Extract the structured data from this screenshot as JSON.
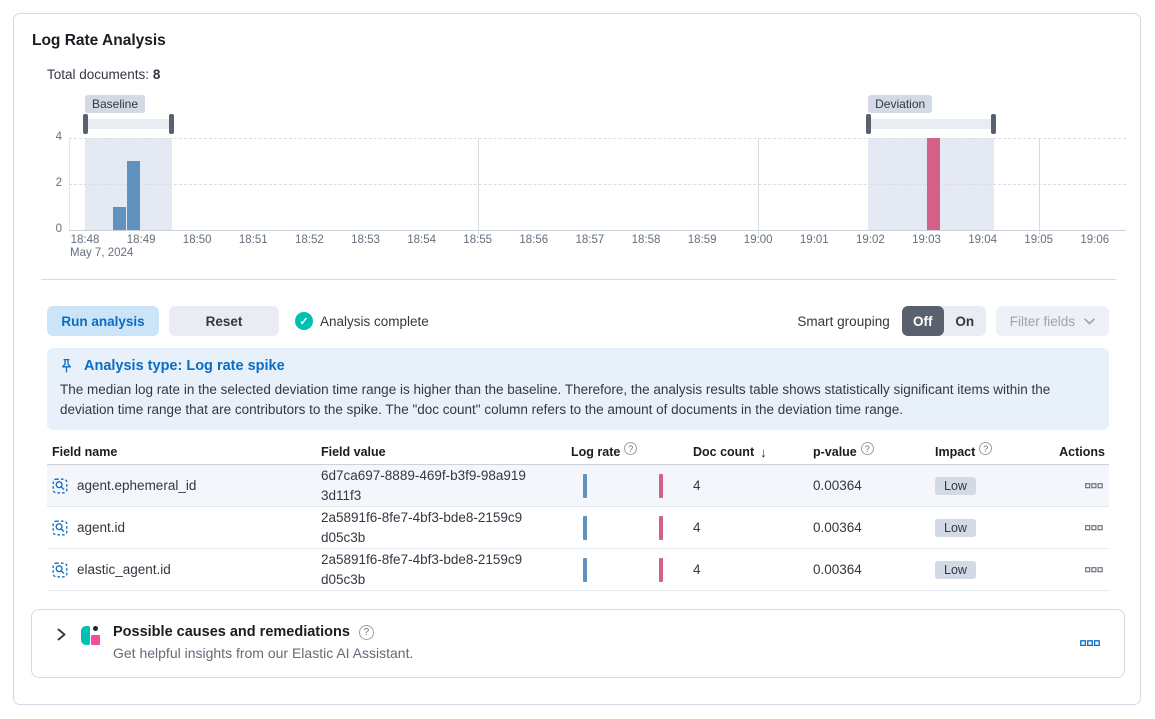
{
  "header": {
    "title": "Log Rate Analysis",
    "total_documents_label": "Total documents:",
    "total_documents_value": "8"
  },
  "icons": {
    "check": "✓",
    "question": "?",
    "sort_desc": "↓"
  },
  "colors": {
    "primary_blue": "#0a6cc2",
    "success_teal": "#00BFB3",
    "baseline_bar": "#6092C0",
    "deviation_bar": "#D36086"
  },
  "chart_data": {
    "type": "bar",
    "title": "",
    "xlabel": "",
    "ylabel": "",
    "x_axis": {
      "tick_labels": [
        "18:48",
        "18:49",
        "18:50",
        "18:51",
        "18:52",
        "18:53",
        "18:54",
        "18:55",
        "18:56",
        "18:57",
        "18:58",
        "18:59",
        "19:00",
        "19:01",
        "19:02",
        "19:03",
        "19:04",
        "19:05",
        "19:06"
      ],
      "first_tick_date": "May 7, 2024",
      "major_gridlines_at": [
        "18:55",
        "19:00",
        "19:05"
      ]
    },
    "y_axis": {
      "ticks": [
        0,
        2,
        4
      ],
      "range": [
        0,
        4
      ],
      "gridlines": "dashed"
    },
    "series": [
      {
        "name": "baseline",
        "color": "#6092C0",
        "points": [
          {
            "time": "18:48:30",
            "offset_min": 0.5,
            "doc_count": 1
          },
          {
            "time": "18:48:45",
            "offset_min": 0.75,
            "doc_count": 3
          }
        ]
      },
      {
        "name": "deviation",
        "color": "#D36086",
        "points": [
          {
            "time": "19:03:00",
            "offset_min": 15.0,
            "doc_count": 4
          }
        ]
      }
    ],
    "brushes": {
      "baseline": {
        "label": "Baseline",
        "start_min": 0.0,
        "end_min": 1.55
      },
      "deviation": {
        "label": "Deviation",
        "start_min": 13.96,
        "end_min": 16.2
      }
    }
  },
  "controls": {
    "run_button": "Run analysis",
    "reset_button": "Reset",
    "status": "Analysis complete",
    "smart_grouping_label": "Smart grouping",
    "toggle_off": "Off",
    "toggle_on": "On",
    "toggle_selected": "Off",
    "filter_fields_button": "Filter fields"
  },
  "callout": {
    "title": "Analysis type: Log rate spike",
    "body": "The median log rate in the selected deviation time range is higher than the baseline. Therefore, the analysis results table shows statistically significant items within the deviation time range that are contributors to the spike. The \"doc count\" column refers to the amount of documents in the deviation time range."
  },
  "table": {
    "columns": [
      {
        "label": "Field name"
      },
      {
        "label": "Field value"
      },
      {
        "label": "Log rate",
        "info": true
      },
      {
        "label": "Doc count",
        "sort": "desc"
      },
      {
        "label": "p-value",
        "info": true
      },
      {
        "label": "Impact",
        "info": true
      },
      {
        "label": "Actions"
      }
    ],
    "rows": [
      {
        "field_name": "agent.ephemeral_id",
        "field_value": "6d7ca697-8889-469f-b3f9-98a9193d11f3",
        "doc_count": "4",
        "p_value": "0.00364",
        "impact": "Low",
        "highlighted": true
      },
      {
        "field_name": "agent.id",
        "field_value": "2a5891f6-8fe7-4bf3-bde8-2159c9d05c3b",
        "doc_count": "4",
        "p_value": "0.00364",
        "impact": "Low",
        "highlighted": false
      },
      {
        "field_name": "elastic_agent.id",
        "field_value": "2a5891f6-8fe7-4bf3-bde8-2159c9d05c3b",
        "doc_count": "4",
        "p_value": "0.00364",
        "impact": "Low",
        "highlighted": false
      }
    ]
  },
  "causes_panel": {
    "title": "Possible causes and remediations",
    "subtitle": "Get helpful insights from our Elastic AI Assistant."
  }
}
